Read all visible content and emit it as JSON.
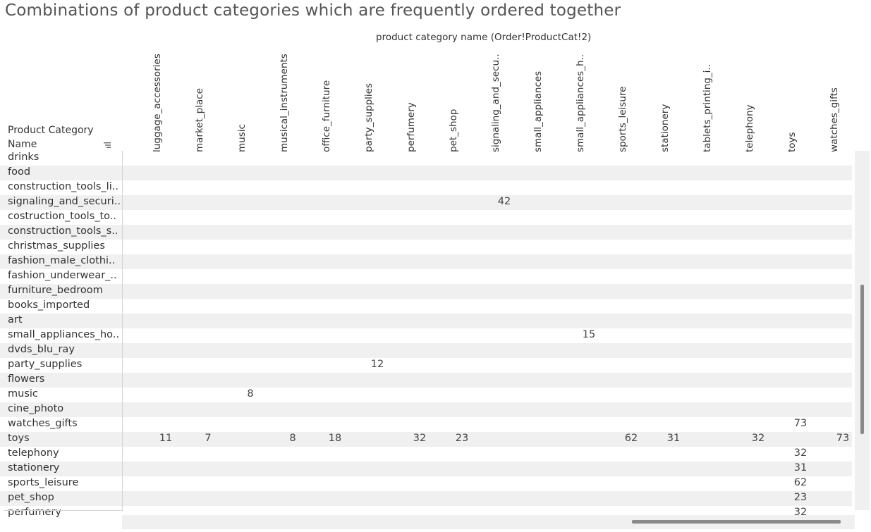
{
  "title": "Combinations of product categories which are frequently ordered together",
  "chart_data": {
    "type": "table",
    "column_header_title": "product category name (Order!ProductCat!2)",
    "row_header_title": "Product Category Name",
    "columns": [
      "luggage_accessories",
      "market_place",
      "music",
      "musical_instruments",
      "office_furniture",
      "party_supplies",
      "perfumery",
      "pet_shop",
      "signaling_and_secu..",
      "small_appliances",
      "small_appliances_h..",
      "sports_leisure",
      "stationery",
      "tablets_printing_i..",
      "telephony",
      "toys",
      "watches_gifts"
    ],
    "rows": [
      {
        "label": "drinks",
        "values": [
          null,
          null,
          null,
          null,
          null,
          null,
          null,
          null,
          null,
          null,
          null,
          null,
          null,
          null,
          null,
          null,
          null
        ]
      },
      {
        "label": "food",
        "values": [
          null,
          null,
          null,
          null,
          null,
          null,
          null,
          null,
          null,
          null,
          null,
          null,
          null,
          null,
          null,
          null,
          null
        ]
      },
      {
        "label": "construction_tools_li..",
        "values": [
          null,
          null,
          null,
          null,
          null,
          null,
          null,
          null,
          null,
          null,
          null,
          null,
          null,
          null,
          null,
          null,
          null
        ]
      },
      {
        "label": "signaling_and_securi..",
        "values": [
          null,
          null,
          null,
          null,
          null,
          null,
          null,
          null,
          42,
          null,
          null,
          null,
          null,
          null,
          null,
          null,
          null
        ]
      },
      {
        "label": "costruction_tools_to..",
        "values": [
          null,
          null,
          null,
          null,
          null,
          null,
          null,
          null,
          null,
          null,
          null,
          null,
          null,
          null,
          null,
          null,
          null
        ]
      },
      {
        "label": "construction_tools_s..",
        "values": [
          null,
          null,
          null,
          null,
          null,
          null,
          null,
          null,
          null,
          null,
          null,
          null,
          null,
          null,
          null,
          null,
          null
        ]
      },
      {
        "label": "christmas_supplies",
        "values": [
          null,
          null,
          null,
          null,
          null,
          null,
          null,
          null,
          null,
          null,
          null,
          null,
          null,
          null,
          null,
          null,
          null
        ]
      },
      {
        "label": "fashion_male_clothi..",
        "values": [
          null,
          null,
          null,
          null,
          null,
          null,
          null,
          null,
          null,
          null,
          null,
          null,
          null,
          null,
          null,
          null,
          null
        ]
      },
      {
        "label": "fashion_underwear_..",
        "values": [
          null,
          null,
          null,
          null,
          null,
          null,
          null,
          null,
          null,
          null,
          null,
          null,
          null,
          null,
          null,
          null,
          null
        ]
      },
      {
        "label": "furniture_bedroom",
        "values": [
          null,
          null,
          null,
          null,
          null,
          null,
          null,
          null,
          null,
          null,
          null,
          null,
          null,
          null,
          null,
          null,
          null
        ]
      },
      {
        "label": "books_imported",
        "values": [
          null,
          null,
          null,
          null,
          null,
          null,
          null,
          null,
          null,
          null,
          null,
          null,
          null,
          null,
          null,
          null,
          null
        ]
      },
      {
        "label": "art",
        "values": [
          null,
          null,
          null,
          null,
          null,
          null,
          null,
          null,
          null,
          null,
          null,
          null,
          null,
          null,
          null,
          null,
          null
        ]
      },
      {
        "label": "small_appliances_ho..",
        "values": [
          null,
          null,
          null,
          null,
          null,
          null,
          null,
          null,
          null,
          null,
          15,
          null,
          null,
          null,
          null,
          null,
          null
        ]
      },
      {
        "label": "dvds_blu_ray",
        "values": [
          null,
          null,
          null,
          null,
          null,
          null,
          null,
          null,
          null,
          null,
          null,
          null,
          null,
          null,
          null,
          null,
          null
        ]
      },
      {
        "label": "party_supplies",
        "values": [
          null,
          null,
          null,
          null,
          null,
          12,
          null,
          null,
          null,
          null,
          null,
          null,
          null,
          null,
          null,
          null,
          null
        ]
      },
      {
        "label": "flowers",
        "values": [
          null,
          null,
          null,
          null,
          null,
          null,
          null,
          null,
          null,
          null,
          null,
          null,
          null,
          null,
          null,
          null,
          null
        ]
      },
      {
        "label": "music",
        "values": [
          null,
          null,
          8,
          null,
          null,
          null,
          null,
          null,
          null,
          null,
          null,
          null,
          null,
          null,
          null,
          null,
          null
        ]
      },
      {
        "label": "cine_photo",
        "values": [
          null,
          null,
          null,
          null,
          null,
          null,
          null,
          null,
          null,
          null,
          null,
          null,
          null,
          null,
          null,
          null,
          null
        ]
      },
      {
        "label": "watches_gifts",
        "values": [
          null,
          null,
          null,
          null,
          null,
          null,
          null,
          null,
          null,
          null,
          null,
          null,
          null,
          null,
          null,
          73,
          null
        ]
      },
      {
        "label": "toys",
        "values": [
          11,
          7,
          null,
          8,
          18,
          null,
          32,
          23,
          null,
          null,
          null,
          62,
          31,
          null,
          32,
          null,
          73
        ]
      },
      {
        "label": "telephony",
        "values": [
          null,
          null,
          null,
          null,
          null,
          null,
          null,
          null,
          null,
          null,
          null,
          null,
          null,
          null,
          null,
          32,
          null
        ]
      },
      {
        "label": "stationery",
        "values": [
          null,
          null,
          null,
          null,
          null,
          null,
          null,
          null,
          null,
          null,
          null,
          null,
          null,
          null,
          null,
          31,
          null
        ]
      },
      {
        "label": "sports_leisure",
        "values": [
          null,
          null,
          null,
          null,
          null,
          null,
          null,
          null,
          null,
          null,
          null,
          null,
          null,
          null,
          null,
          62,
          null
        ]
      },
      {
        "label": "pet_shop",
        "values": [
          null,
          null,
          null,
          null,
          null,
          null,
          null,
          null,
          null,
          null,
          null,
          null,
          null,
          null,
          null,
          23,
          null
        ]
      },
      {
        "label": "perfumery",
        "values": [
          null,
          null,
          null,
          null,
          null,
          null,
          null,
          null,
          null,
          null,
          null,
          null,
          null,
          null,
          null,
          32,
          null
        ]
      }
    ]
  },
  "icons": {
    "sort": "sort-descending-icon"
  },
  "colors": {
    "alt_row": "#f0f0f0",
    "text": "#333333",
    "scrollbar": "#8a8a8a"
  }
}
